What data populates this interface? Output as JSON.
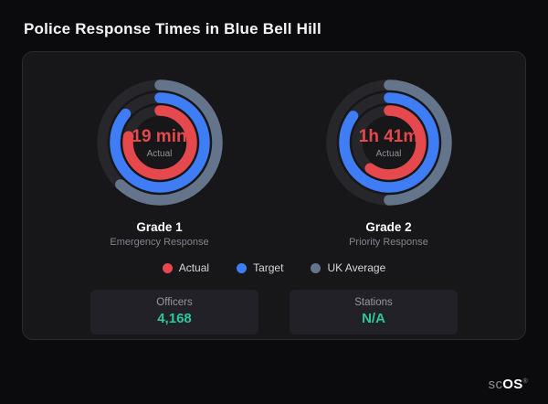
{
  "page": {
    "title": "Police Response Times in Blue Bell Hill",
    "watermark": {
      "prefix": "sc",
      "suffix": "OS",
      "reg": "®"
    }
  },
  "colors": {
    "actual": "#e5484d",
    "target": "#3f7df6",
    "uk_average": "#64748b",
    "stat_value": "#2bc79e",
    "card_background": "#17171a",
    "page_background": "#0b0b0d"
  },
  "chart_data": [
    {
      "type": "radial",
      "title": "Grade 1",
      "subtitle": "Emergency Response",
      "center_value": "19 min",
      "center_label": "Actual",
      "series": [
        {
          "name": "Actual",
          "color": "#e5484d",
          "fraction": 0.78
        },
        {
          "name": "Target",
          "color": "#3f7df6",
          "fraction": 0.86
        },
        {
          "name": "UK Average",
          "color": "#64748b",
          "fraction": 0.62
        }
      ]
    },
    {
      "type": "radial",
      "title": "Grade 2",
      "subtitle": "Priority Response",
      "center_value": "1h 41m",
      "center_label": "Actual",
      "series": [
        {
          "name": "Actual",
          "color": "#e5484d",
          "fraction": 0.6
        },
        {
          "name": "Target",
          "color": "#3f7df6",
          "fraction": 0.85
        },
        {
          "name": "UK Average",
          "color": "#64748b",
          "fraction": 0.5
        }
      ]
    }
  ],
  "legend": [
    {
      "label": "Actual",
      "color": "#e5484d"
    },
    {
      "label": "Target",
      "color": "#3f7df6"
    },
    {
      "label": "UK Average",
      "color": "#64748b"
    }
  ],
  "stats": [
    {
      "label": "Officers",
      "value": "4,168"
    },
    {
      "label": "Stations",
      "value": "N/A"
    }
  ]
}
